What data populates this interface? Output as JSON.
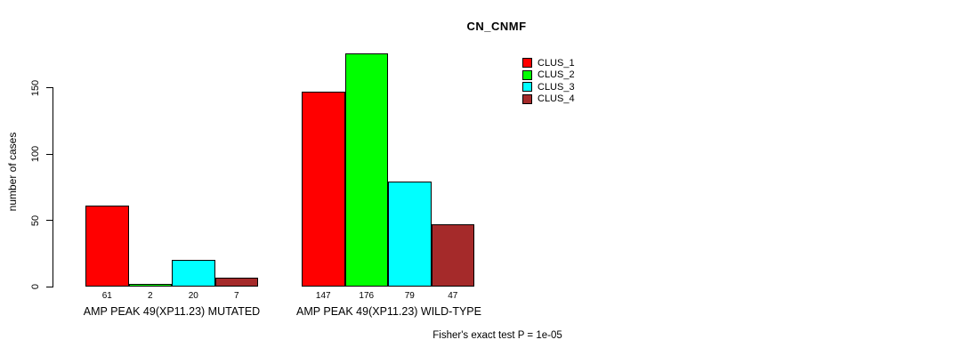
{
  "chart_data": {
    "type": "bar",
    "title": "CN_CNMF",
    "ylabel": "number of cases",
    "xlabel": "",
    "yticks": [
      0,
      50,
      100,
      150
    ],
    "ylim": [
      0,
      180
    ],
    "grid": false,
    "legend_position": "top-right",
    "categories": [
      "AMP PEAK 49(XP11.23) MUTATED",
      "AMP PEAK 49(XP11.23) WILD-TYPE"
    ],
    "series": [
      {
        "name": "CLUS_1",
        "color": "#FF0000",
        "values": [
          61,
          147
        ]
      },
      {
        "name": "CLUS_2",
        "color": "#00FF00",
        "values": [
          2,
          176
        ]
      },
      {
        "name": "CLUS_3",
        "color": "#00FFFF",
        "values": [
          20,
          79
        ]
      },
      {
        "name": "CLUS_4",
        "color": "#A52A2A",
        "values": [
          7,
          47
        ]
      }
    ],
    "bar_value_labels": [
      [
        61,
        2,
        20,
        7
      ],
      [
        147,
        176,
        79,
        47
      ]
    ],
    "footer": "Fisher's exact test P = 1e-05"
  }
}
